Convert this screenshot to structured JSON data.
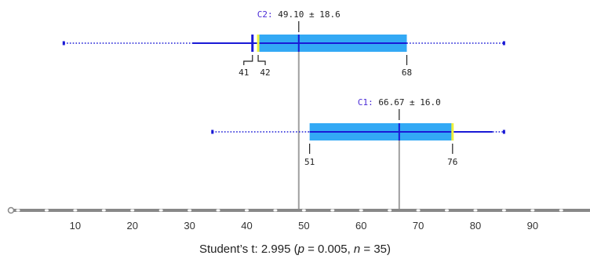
{
  "chart_data": {
    "type": "box",
    "xlim": [
      0,
      100
    ],
    "x_ticks": [
      10,
      20,
      30,
      40,
      50,
      60,
      70,
      80,
      90
    ],
    "statistic": {
      "prefix": "Student’s t: 2.995 (",
      "p_symbol": "p",
      "p_value": " = 0.005, ",
      "n_symbol": "n",
      "n_value": " = 35)"
    },
    "series": [
      {
        "name": "C2",
        "stat_label": "49.10 ± 18.6",
        "mean": 49.1,
        "sd": 18.6,
        "q1": 42,
        "median": 42,
        "q3": 68,
        "whisker_low": 30.5,
        "whisker_high": 68,
        "range_low": 8,
        "range_high": 85,
        "extra_marks": [
          41
        ],
        "labels": [
          {
            "text": "41",
            "value": 41
          },
          {
            "text": "42",
            "value": 42
          },
          {
            "text": "68",
            "value": 68
          }
        ]
      },
      {
        "name": "C1",
        "stat_label": "66.67 ± 16.0",
        "mean": 66.67,
        "sd": 16.0,
        "q1": 51,
        "median": 76,
        "q3": 76,
        "whisker_low": 51,
        "whisker_high": 83,
        "range_low": 34,
        "range_high": 85,
        "extra_marks": [],
        "labels": [
          {
            "text": "51",
            "value": 51
          },
          {
            "text": "76",
            "value": 76
          }
        ]
      }
    ],
    "colors": {
      "box": "#33a9f5",
      "whisker": "#1a1ad6",
      "median": "#f2f23a",
      "mean_line": "#a0a0a0",
      "axis": "#888888",
      "series_name": "#4a2bd6"
    }
  }
}
